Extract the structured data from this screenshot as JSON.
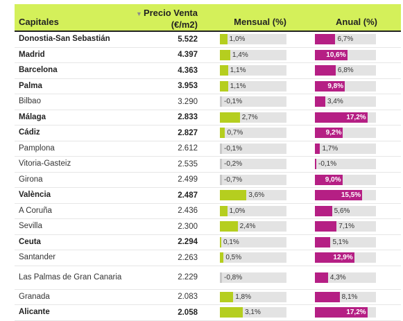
{
  "columns": {
    "city": "Capitales",
    "price_line1": "Precio Venta",
    "price_line2": "(€/m2)",
    "monthly": "Mensual (%)",
    "annual": "Anual (%)",
    "sort_icon": "sort-down-triangle-icon"
  },
  "colors": {
    "header_bg": "#d4f05a",
    "monthly_bar": "#b5ce1f",
    "annual_bar": "#b51f84",
    "track": "#e3e3e3"
  },
  "scale": {
    "monthly_max": 9.0,
    "annual_max": 20.0
  },
  "rows": [
    {
      "city": "Donostia-San Sebastián",
      "price": "5.522",
      "monthly": 1.0,
      "monthly_label": "1,0%",
      "annual": 6.7,
      "annual_label": "6,7%",
      "bold": true
    },
    {
      "city": "Madrid",
      "price": "4.397",
      "monthly": 1.4,
      "monthly_label": "1,4%",
      "annual": 10.6,
      "annual_label": "10,6%",
      "bold": true
    },
    {
      "city": "Barcelona",
      "price": "4.363",
      "monthly": 1.1,
      "monthly_label": "1,1%",
      "annual": 6.8,
      "annual_label": "6,8%",
      "bold": true
    },
    {
      "city": "Palma",
      "price": "3.953",
      "monthly": 1.1,
      "monthly_label": "1,1%",
      "annual": 9.8,
      "annual_label": "9,8%",
      "bold": true
    },
    {
      "city": "Bilbao",
      "price": "3.290",
      "monthly": -0.1,
      "monthly_label": "-0,1%",
      "annual": 3.4,
      "annual_label": "3,4%",
      "bold": false
    },
    {
      "city": "Málaga",
      "price": "2.833",
      "monthly": 2.7,
      "monthly_label": "2,7%",
      "annual": 17.2,
      "annual_label": "17,2%",
      "bold": true
    },
    {
      "city": "Cádiz",
      "price": "2.827",
      "monthly": 0.7,
      "monthly_label": "0,7%",
      "annual": 9.2,
      "annual_label": "9,2%",
      "bold": true
    },
    {
      "city": "Pamplona",
      "price": "2.612",
      "monthly": -0.1,
      "monthly_label": "-0,1%",
      "annual": 1.7,
      "annual_label": "1,7%",
      "bold": false
    },
    {
      "city": "Vitoria-Gasteiz",
      "price": "2.535",
      "monthly": -0.2,
      "monthly_label": "-0,2%",
      "annual": -0.1,
      "annual_label": "-0,1%",
      "bold": false
    },
    {
      "city": "Girona",
      "price": "2.499",
      "monthly": -0.7,
      "monthly_label": "-0,7%",
      "annual": 9.0,
      "annual_label": "9,0%",
      "bold": false
    },
    {
      "city": "València",
      "price": "2.487",
      "monthly": 3.6,
      "monthly_label": "3,6%",
      "annual": 15.5,
      "annual_label": "15,5%",
      "bold": true
    },
    {
      "city": "A Coruña",
      "price": "2.436",
      "monthly": 1.0,
      "monthly_label": "1,0%",
      "annual": 5.6,
      "annual_label": "5,6%",
      "bold": false
    },
    {
      "city": "Sevilla",
      "price": "2.300",
      "monthly": 2.4,
      "monthly_label": "2,4%",
      "annual": 7.1,
      "annual_label": "7,1%",
      "bold": false
    },
    {
      "city": "Ceuta",
      "price": "2.294",
      "monthly": 0.1,
      "monthly_label": "0,1%",
      "annual": 5.1,
      "annual_label": "5,1%",
      "bold": true
    },
    {
      "city": "Santander",
      "price": "2.263",
      "monthly": 0.5,
      "monthly_label": "0,5%",
      "annual": 12.9,
      "annual_label": "12,9%",
      "bold": false
    },
    {
      "city": "Las Palmas de Gran Canaria",
      "price": "2.229",
      "monthly": -0.8,
      "monthly_label": "-0,8%",
      "annual": 4.3,
      "annual_label": "4,3%",
      "bold": false
    },
    {
      "city": "Granada",
      "price": "2.083",
      "monthly": 1.8,
      "monthly_label": "1,8%",
      "annual": 8.1,
      "annual_label": "8,1%",
      "bold": false
    },
    {
      "city": "Alicante",
      "price": "2.058",
      "monthly": 3.1,
      "monthly_label": "3,1%",
      "annual": 17.2,
      "annual_label": "17,2%",
      "bold": true
    }
  ]
}
